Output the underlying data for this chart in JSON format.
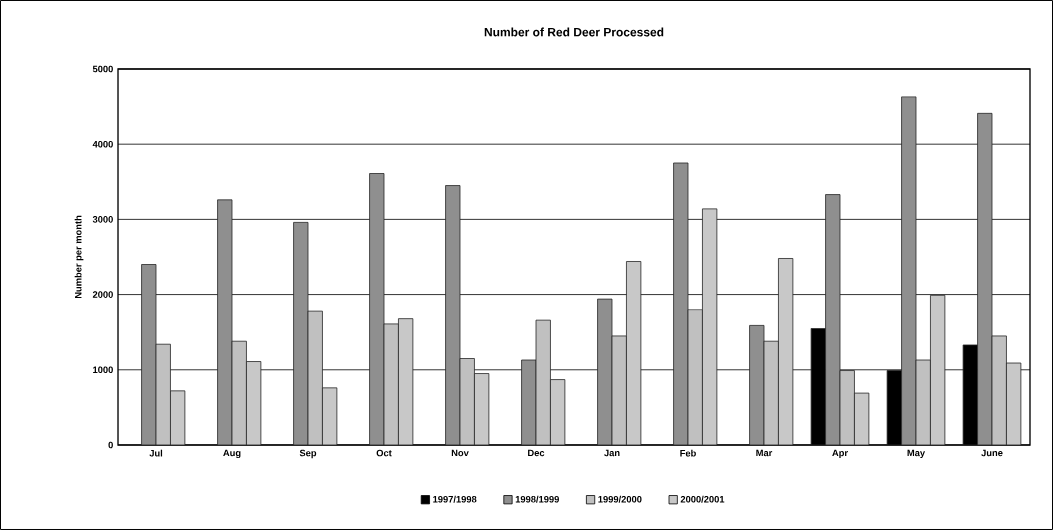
{
  "chart_data": {
    "type": "bar",
    "title": "Number of Red Deer Processed",
    "ylabel": "Number per month",
    "categories": [
      "Jul",
      "Aug",
      "Sep",
      "Oct",
      "Nov",
      "Dec",
      "Jan",
      "Feb",
      "Mar",
      "Apr",
      "May",
      "June"
    ],
    "series": [
      {
        "name": "1997/1998",
        "color": "#000000",
        "values": [
          null,
          null,
          null,
          null,
          null,
          null,
          null,
          null,
          null,
          1550,
          990,
          1330
        ]
      },
      {
        "name": "1998/1999",
        "color": "#8f8f8f",
        "values": [
          2400,
          3260,
          2960,
          3610,
          3450,
          1130,
          1940,
          3750,
          1590,
          3330,
          4630,
          4410
        ]
      },
      {
        "name": "1999/2000",
        "color": "#c0c0c0",
        "values": [
          1340,
          1380,
          1780,
          1610,
          1150,
          1660,
          1450,
          1800,
          1380,
          990,
          1130,
          1450
        ]
      },
      {
        "name": "2000/2001",
        "color": "#c8c8c8",
        "values": [
          720,
          1110,
          760,
          1680,
          950,
          870,
          2440,
          3140,
          2480,
          690,
          1990,
          1090
        ]
      }
    ],
    "ylim": [
      0,
      5000
    ],
    "yticks": [
      0,
      1000,
      2000,
      3000,
      4000,
      5000
    ],
    "grid": "y",
    "legend": "bottom"
  }
}
